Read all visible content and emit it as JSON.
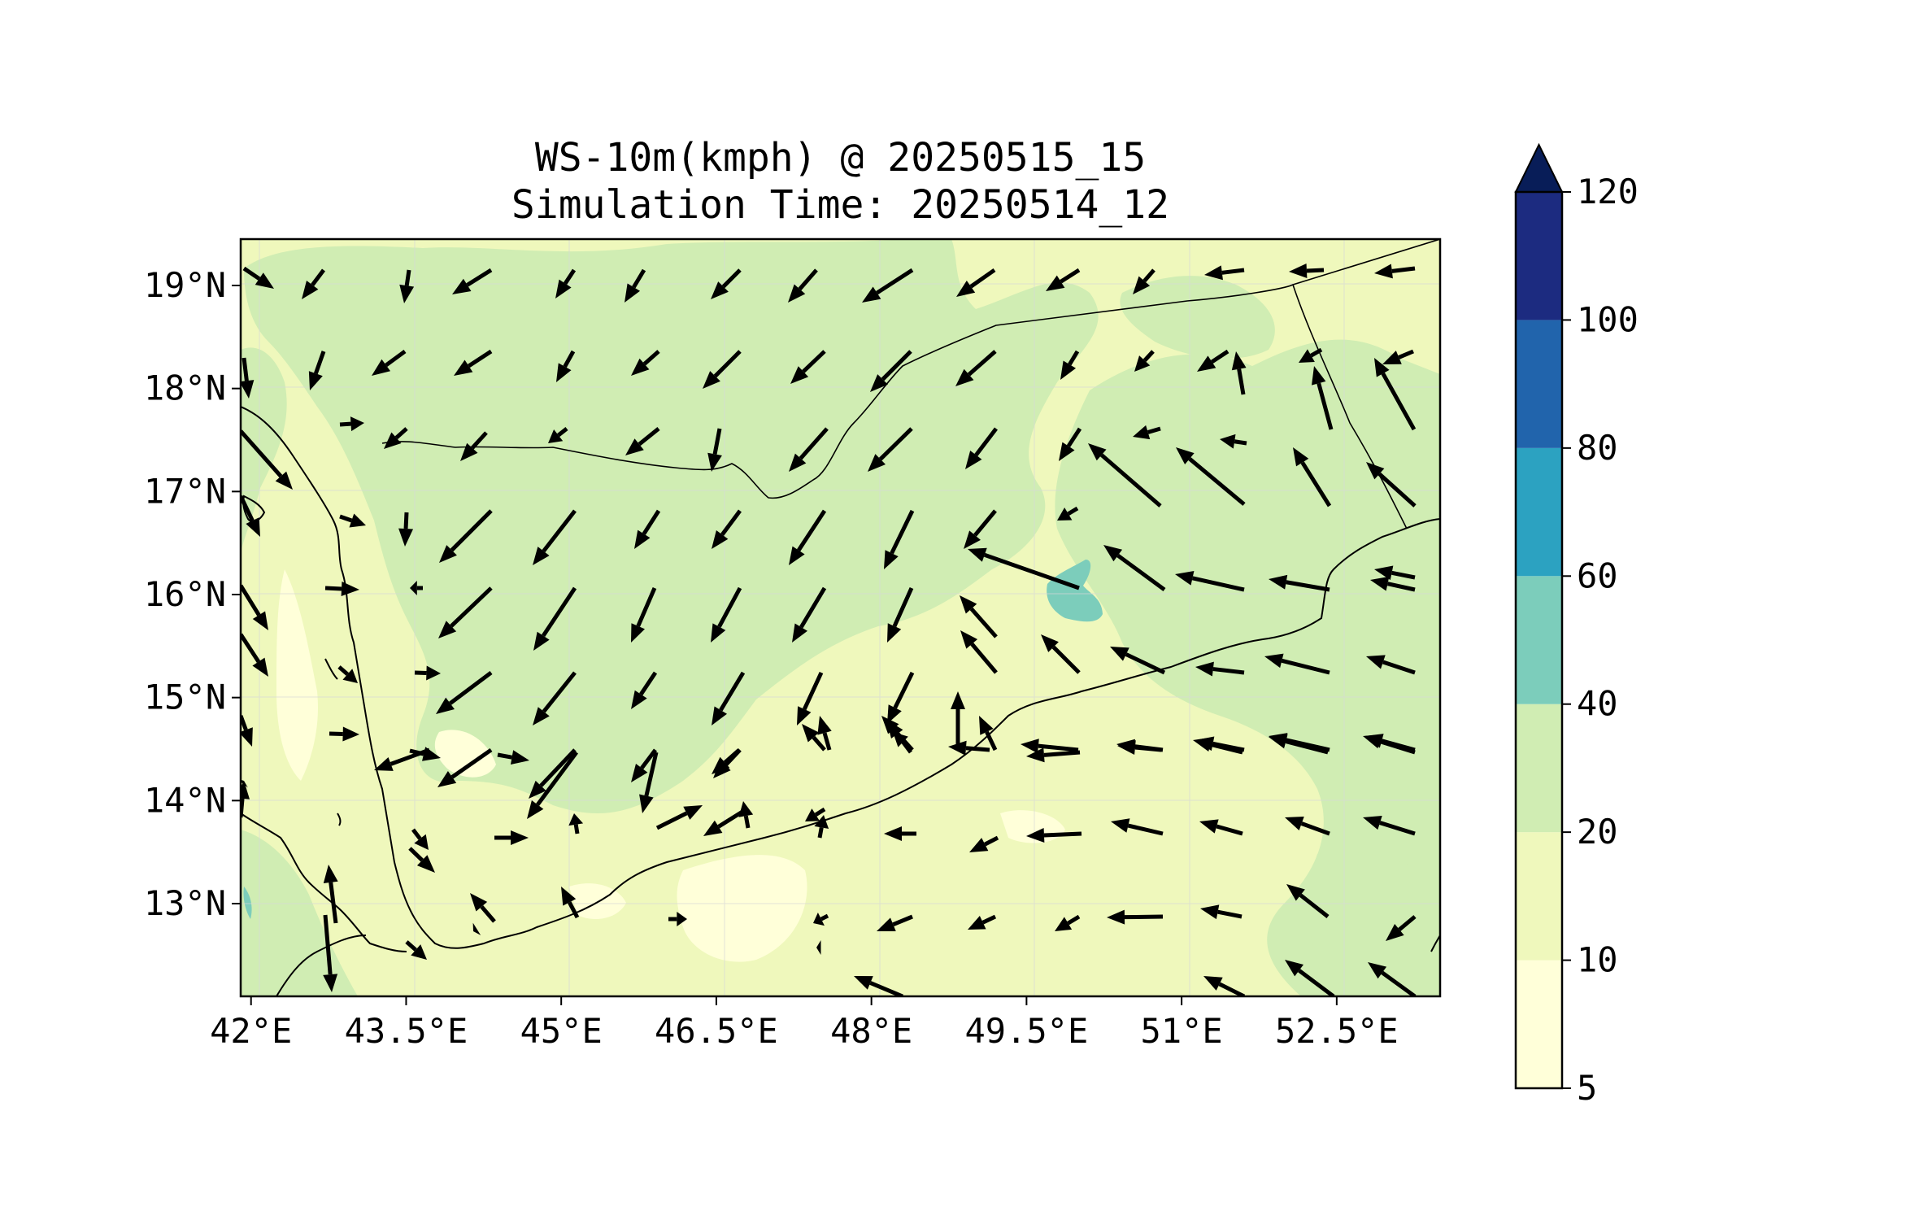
{
  "title": {
    "line1": "WS-10m(kmph) @ 20250515_15",
    "line2": "Simulation Time: 20250514_12"
  },
  "map": {
    "lon_range": [
      41.9,
      53.5
    ],
    "lat_range": [
      12.1,
      19.45
    ],
    "x_ticks": [
      {
        "value": 42.0,
        "label": "42°E"
      },
      {
        "value": 43.5,
        "label": "43.5°E"
      },
      {
        "value": 45.0,
        "label": "45°E"
      },
      {
        "value": 46.5,
        "label": "46.5°E"
      },
      {
        "value": 48.0,
        "label": "48°E"
      },
      {
        "value": 49.5,
        "label": "49.5°E"
      },
      {
        "value": 51.0,
        "label": "51°E"
      },
      {
        "value": 52.5,
        "label": "52.5°E"
      }
    ],
    "y_ticks": [
      {
        "value": 19,
        "label": "19°N"
      },
      {
        "value": 18,
        "label": "18°N"
      },
      {
        "value": 17,
        "label": "17°N"
      },
      {
        "value": 16,
        "label": "16°N"
      },
      {
        "value": 15,
        "label": "15°N"
      },
      {
        "value": 14,
        "label": "14°N"
      },
      {
        "value": 13,
        "label": "13°N"
      }
    ],
    "gridlines": true,
    "field_colors": {
      "5-10": "#ffffd9",
      "10-20": "#eff8bc",
      "20-40": "#d0edb3",
      "40-60": "#7ccdbb"
    }
  },
  "colorbar": {
    "levels": [
      5,
      10,
      20,
      40,
      60,
      80,
      100,
      120
    ],
    "labels": [
      "5",
      "10",
      "20",
      "40",
      "60",
      "80",
      "100",
      "120"
    ],
    "colors": [
      "#ffffd9",
      "#eff8bc",
      "#d0edb3",
      "#7ccdbb",
      "#2ca2c1",
      "#2164ac",
      "#1c2b80"
    ],
    "extend_color": "#081d58",
    "extend": "max"
  }
}
